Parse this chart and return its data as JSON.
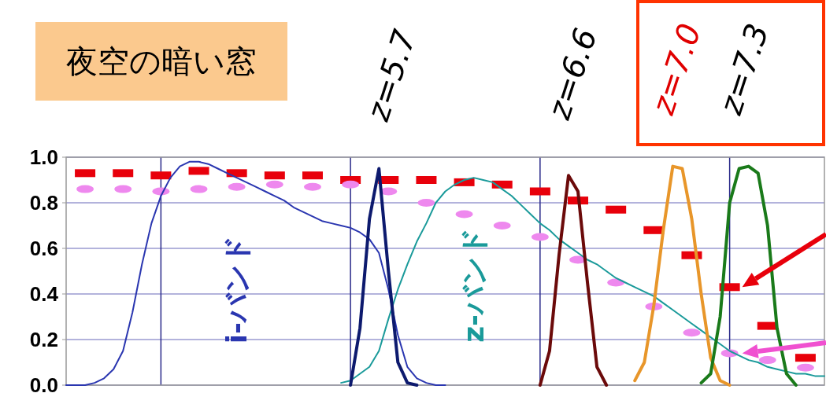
{
  "chart_data": {
    "type": "line",
    "title": "夜空の暗い窓",
    "categories": [
      null,
      null,
      null,
      null,
      null,
      null,
      null,
      null,
      null,
      null,
      null,
      null,
      null,
      null,
      null,
      null,
      null,
      null,
      null,
      null,
      null,
      null,
      null,
      null,
      null,
      null,
      null,
      null,
      null,
      null,
      null,
      null,
      null,
      null,
      null,
      null,
      null,
      null,
      null,
      null,
      null,
      null,
      null,
      null,
      null,
      null,
      null,
      null,
      null,
      null,
      null,
      null,
      null,
      null,
      null,
      null,
      null,
      null,
      null,
      null,
      null,
      null,
      null,
      null,
      null,
      null,
      null,
      null,
      null,
      null,
      null,
      null,
      null,
      null,
      null,
      null,
      null,
      null,
      null,
      null,
      null
    ],
    "ylim": [
      0,
      1
    ],
    "yticks": [
      {
        "value": 0,
        "label": "0.0"
      },
      {
        "value": 0.2,
        "label": "0.2"
      },
      {
        "value": 0.4,
        "label": "0.4"
      },
      {
        "value": 0.6,
        "label": "0.6"
      },
      {
        "value": 0.8,
        "label": "0.8"
      },
      {
        "value": 1,
        "label": "1.0"
      }
    ],
    "grid": true,
    "annotations": [
      "z=5.7",
      "z=6.6",
      "z=7.0",
      "z=7.3"
    ],
    "series": [
      {
        "type": "scatter",
        "marker": "square",
        "color": "#e8000b",
        "values": [
          null,
          null,
          0.93,
          null,
          null,
          null,
          0.93,
          null,
          null,
          null,
          0.92,
          null,
          null,
          null,
          0.94,
          null,
          null,
          null,
          0.93,
          null,
          null,
          null,
          0.92,
          null,
          null,
          null,
          0.92,
          null,
          null,
          null,
          0.9,
          null,
          null,
          null,
          0.9,
          null,
          null,
          null,
          0.9,
          null,
          null,
          null,
          0.89,
          null,
          null,
          null,
          0.88,
          null,
          null,
          null,
          0.85,
          null,
          null,
          null,
          0.81,
          null,
          null,
          null,
          0.77,
          null,
          null,
          null,
          0.68,
          null,
          null,
          null,
          0.57,
          null,
          null,
          null,
          0.43,
          null,
          null,
          null,
          0.26,
          null,
          null,
          null,
          0.12,
          null,
          null
        ]
      },
      {
        "type": "scatter",
        "marker": "circle",
        "color": "#ee88ee",
        "values": [
          null,
          null,
          0.86,
          null,
          null,
          null,
          0.86,
          null,
          null,
          null,
          0.85,
          null,
          null,
          null,
          0.86,
          null,
          null,
          null,
          0.87,
          null,
          null,
          null,
          0.88,
          null,
          null,
          null,
          0.87,
          null,
          null,
          null,
          0.88,
          null,
          null,
          null,
          0.85,
          null,
          null,
          null,
          0.8,
          null,
          null,
          null,
          0.75,
          null,
          null,
          null,
          0.7,
          null,
          null,
          null,
          0.65,
          null,
          null,
          null,
          0.55,
          null,
          null,
          null,
          0.45,
          null,
          null,
          null,
          0.345,
          null,
          null,
          null,
          0.23,
          null,
          null,
          null,
          0.14,
          null,
          null,
          null,
          0.11,
          null,
          null,
          null,
          0.077,
          null,
          null
        ]
      },
      {
        "name": "i-バンド",
        "color": "#2a36b0",
        "values": [
          0,
          0,
          0,
          0.01,
          0.03,
          0.07,
          0.15,
          0.32,
          0.53,
          0.71,
          0.83,
          0.91,
          0.96,
          0.98,
          0.98,
          0.97,
          0.95,
          0.93,
          0.91,
          0.89,
          0.87,
          0.85,
          0.83,
          0.81,
          0.78,
          0.76,
          0.74,
          0.72,
          0.71,
          0.7,
          0.69,
          0.67,
          0.64,
          0.58,
          0.42,
          0.22,
          0.08,
          0.03,
          0.01,
          0,
          0,
          null,
          null,
          null,
          null,
          null,
          null,
          null,
          null,
          null,
          null,
          null,
          null,
          null,
          null,
          null,
          null,
          null,
          null,
          null,
          null,
          null,
          null,
          null,
          null,
          null,
          null,
          null,
          null,
          null,
          null,
          null,
          null,
          null,
          null,
          null,
          null,
          null,
          null,
          null,
          null
        ]
      },
      {
        "name": "z-バンド",
        "color": "#1a9a9a",
        "values": [
          null,
          null,
          null,
          null,
          null,
          null,
          null,
          null,
          null,
          null,
          null,
          null,
          null,
          null,
          null,
          null,
          null,
          null,
          null,
          null,
          null,
          null,
          null,
          null,
          null,
          null,
          null,
          null,
          null,
          0.01,
          0.02,
          0.05,
          0.08,
          0.15,
          0.29,
          0.42,
          0.53,
          0.63,
          0.71,
          0.8,
          0.85,
          0.88,
          0.9,
          0.91,
          0.9,
          0.89,
          0.86,
          0.83,
          0.79,
          0.75,
          0.71,
          0.68,
          0.64,
          0.61,
          0.58,
          0.55,
          0.53,
          0.5,
          0.47,
          0.45,
          0.43,
          0.41,
          0.39,
          0.36,
          0.33,
          0.3,
          0.27,
          0.24,
          0.21,
          0.18,
          0.15,
          0.13,
          0.11,
          0.1,
          0.08,
          0.07,
          0.06,
          0.05,
          0.05,
          0.04,
          0.04
        ]
      },
      {
        "color": "#0d1a6e",
        "values": [
          null,
          null,
          null,
          null,
          null,
          null,
          null,
          null,
          null,
          null,
          null,
          null,
          null,
          null,
          null,
          null,
          null,
          null,
          null,
          null,
          null,
          null,
          null,
          null,
          null,
          null,
          null,
          null,
          null,
          null,
          0,
          0.25,
          0.73,
          0.95,
          0.5,
          0.1,
          0.01,
          0,
          null,
          null,
          null,
          null,
          null,
          null,
          null,
          null,
          null,
          null,
          null,
          null,
          null,
          null,
          null,
          null,
          null,
          null,
          null,
          null,
          null,
          null,
          null,
          null,
          null,
          null,
          null,
          null,
          null,
          null,
          null,
          null,
          null,
          null,
          null,
          null,
          null,
          null,
          null,
          null,
          null,
          null,
          null
        ]
      },
      {
        "color": "#6b0a0a",
        "values": [
          null,
          null,
          null,
          null,
          null,
          null,
          null,
          null,
          null,
          null,
          null,
          null,
          null,
          null,
          null,
          null,
          null,
          null,
          null,
          null,
          null,
          null,
          null,
          null,
          null,
          null,
          null,
          null,
          null,
          null,
          null,
          null,
          null,
          null,
          null,
          null,
          null,
          null,
          null,
          null,
          null,
          null,
          null,
          null,
          null,
          null,
          null,
          null,
          null,
          null,
          0,
          0.15,
          0.57,
          0.92,
          0.85,
          0.45,
          0.08,
          0,
          null,
          null,
          null,
          null,
          null,
          null,
          null,
          null,
          null,
          null,
          null,
          null,
          null,
          null,
          null,
          null,
          null,
          null,
          null,
          null,
          null,
          null,
          null
        ]
      },
      {
        "color": "#e8962a",
        "values": [
          null,
          null,
          null,
          null,
          null,
          null,
          null,
          null,
          null,
          null,
          null,
          null,
          null,
          null,
          null,
          null,
          null,
          null,
          null,
          null,
          null,
          null,
          null,
          null,
          null,
          null,
          null,
          null,
          null,
          null,
          null,
          null,
          null,
          null,
          null,
          null,
          null,
          null,
          null,
          null,
          null,
          null,
          null,
          null,
          null,
          null,
          null,
          null,
          null,
          null,
          null,
          null,
          null,
          null,
          null,
          null,
          null,
          null,
          null,
          null,
          0.02,
          0.1,
          0.35,
          0.68,
          0.96,
          0.95,
          0.73,
          0.4,
          0.12,
          0.02,
          0,
          null,
          null,
          null,
          null,
          null,
          null,
          null,
          null,
          null,
          null
        ]
      },
      {
        "color": "#1a7a1a",
        "values": [
          null,
          null,
          null,
          null,
          null,
          null,
          null,
          null,
          null,
          null,
          null,
          null,
          null,
          null,
          null,
          null,
          null,
          null,
          null,
          null,
          null,
          null,
          null,
          null,
          null,
          null,
          null,
          null,
          null,
          null,
          null,
          null,
          null,
          null,
          null,
          null,
          null,
          null,
          null,
          null,
          null,
          null,
          null,
          null,
          null,
          null,
          null,
          null,
          null,
          null,
          null,
          null,
          null,
          null,
          null,
          null,
          null,
          null,
          null,
          null,
          null,
          null,
          null,
          null,
          null,
          null,
          null,
          0.01,
          0.05,
          0.3,
          0.8,
          0.95,
          0.96,
          0.93,
          0.7,
          0.25,
          0.05,
          0,
          null,
          null,
          null
        ]
      }
    ]
  }
}
